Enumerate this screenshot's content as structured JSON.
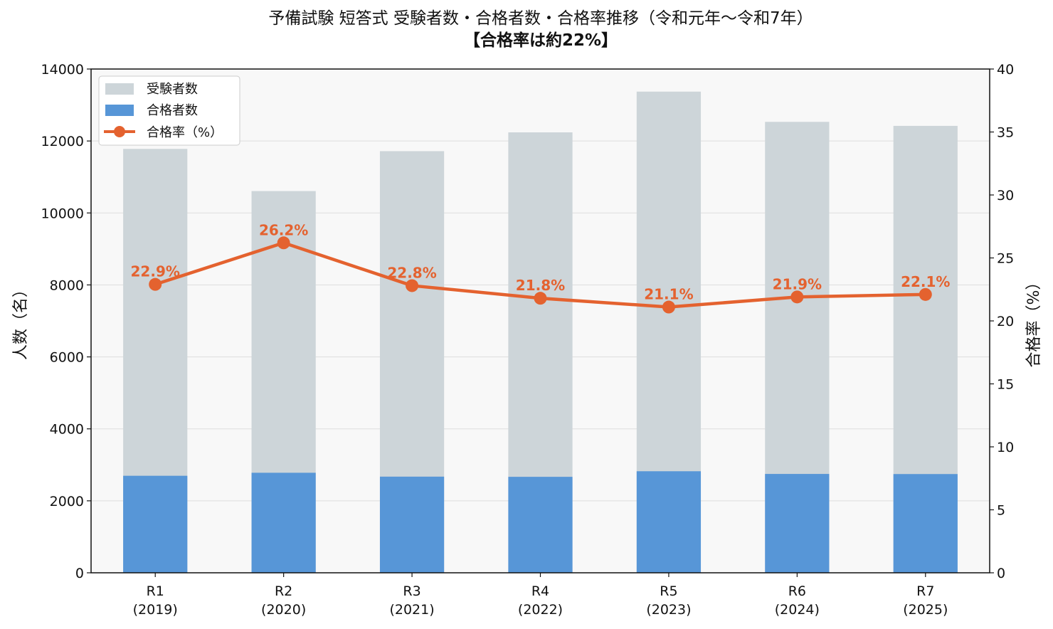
{
  "chart_data": {
    "type": "bar",
    "title": "予備試験 短答式 受験者数・合格者数・合格率推移（令和元年〜令和7年）",
    "subtitle": "【合格率は約22%】",
    "categories": [
      "R1\n(2019)",
      "R2\n(2020)",
      "R3\n(2021)",
      "R4\n(2022)",
      "R5\n(2023)",
      "R6\n(2024)",
      "R7\n(2025)"
    ],
    "ylabel": "人数（名）",
    "y2label": "合格率（%）",
    "ylim": [
      0,
      14000
    ],
    "y2lim": [
      0,
      40
    ],
    "yticks": [
      "0",
      "2000",
      "4000",
      "6000",
      "8000",
      "10000",
      "12000",
      "14000"
    ],
    "y2ticks": [
      "0",
      "5",
      "10",
      "15",
      "20",
      "25",
      "30",
      "35",
      "40"
    ],
    "grid": true,
    "legend_position": "top-left",
    "series": [
      {
        "name": "受験者数",
        "type": "bar",
        "color": "#cdd5d9",
        "values": [
          11780,
          10608,
          11717,
          12240,
          13372,
          12532,
          12420
        ]
      },
      {
        "name": "合格者数",
        "type": "bar",
        "color": "#5796d7",
        "values": [
          2696,
          2780,
          2672,
          2667,
          2822,
          2747,
          2744
        ]
      },
      {
        "name": "合格率（%）",
        "type": "line",
        "axis": "right",
        "color": "#e4622f",
        "values": [
          22.9,
          26.2,
          22.8,
          21.8,
          21.1,
          21.9,
          22.1
        ],
        "labels": [
          "22.9%",
          "26.2%",
          "22.8%",
          "21.8%",
          "21.1%",
          "21.9%",
          "22.1%"
        ]
      }
    ]
  }
}
